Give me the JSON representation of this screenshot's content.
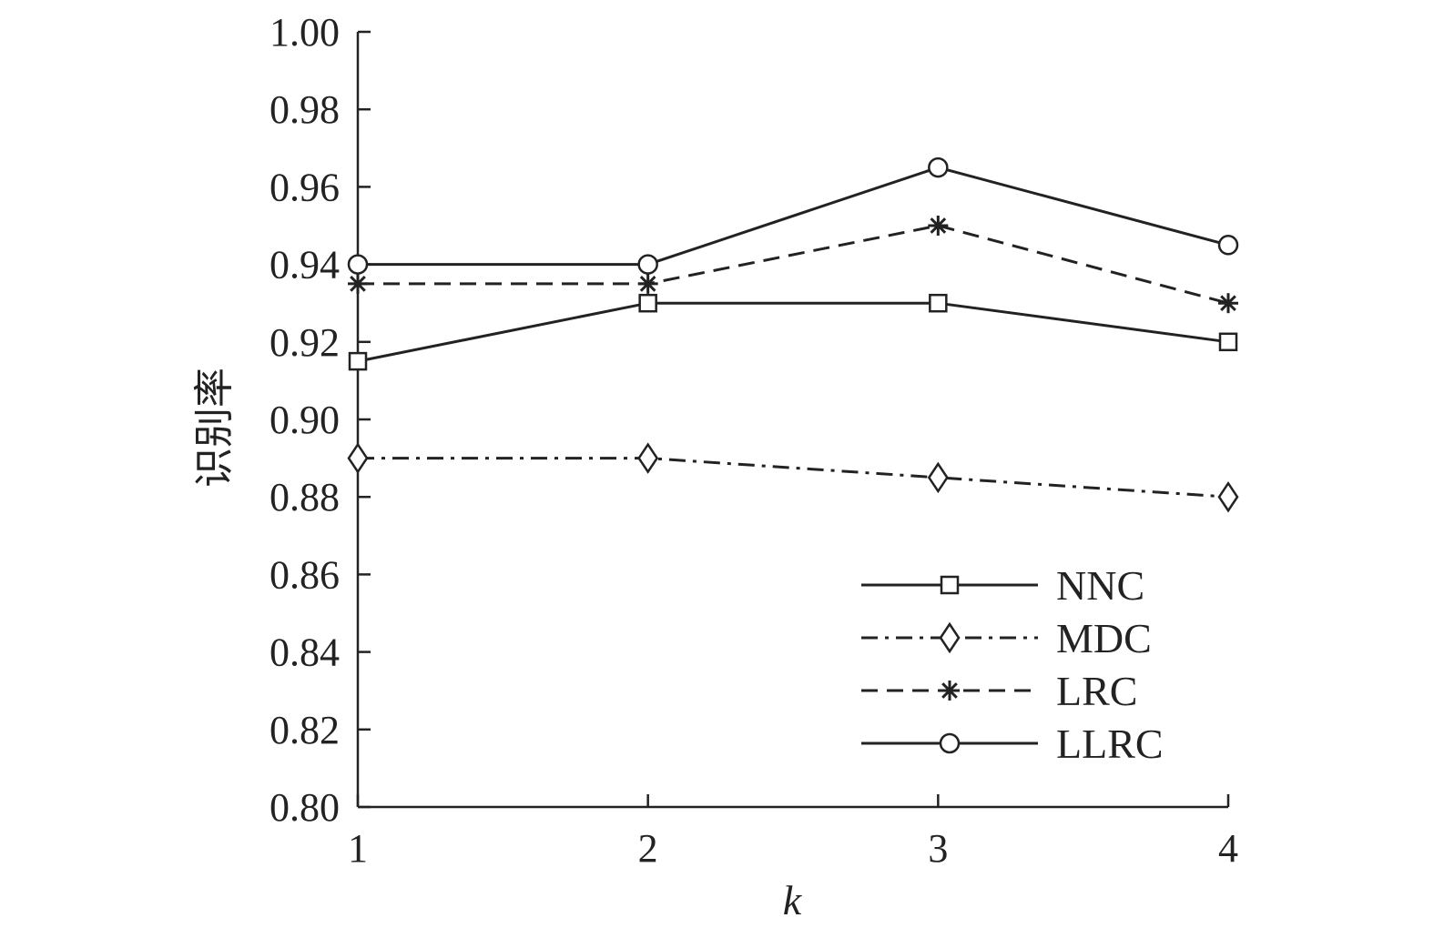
{
  "chart_data": {
    "type": "line",
    "title": "",
    "xlabel": "k",
    "ylabel": "识别率",
    "x": [
      1,
      2,
      3,
      4
    ],
    "x_ticks": [
      "1",
      "2",
      "3",
      "4"
    ],
    "xlim": [
      1,
      4
    ],
    "ylim": [
      0.8,
      1.0
    ],
    "y_ticks": [
      "0.80",
      "0.82",
      "0.84",
      "0.86",
      "0.88",
      "0.90",
      "0.92",
      "0.94",
      "0.96",
      "0.98",
      "1.00"
    ],
    "grid": false,
    "legend_position": "bottom-right",
    "series": [
      {
        "name": "NNC",
        "values": [
          0.915,
          0.93,
          0.93,
          0.92
        ],
        "marker": "square",
        "dash": "solid",
        "color": "#222222"
      },
      {
        "name": "MDC",
        "values": [
          0.89,
          0.89,
          0.885,
          0.88
        ],
        "marker": "diamond",
        "dash": "dash-dot",
        "color": "#222222"
      },
      {
        "name": "LRC",
        "values": [
          0.935,
          0.935,
          0.95,
          0.93
        ],
        "marker": "asterisk",
        "dash": "dashed",
        "color": "#222222"
      },
      {
        "name": "LLRC",
        "values": [
          0.94,
          0.94,
          0.965,
          0.945
        ],
        "marker": "circle",
        "dash": "solid",
        "color": "#222222"
      }
    ]
  }
}
